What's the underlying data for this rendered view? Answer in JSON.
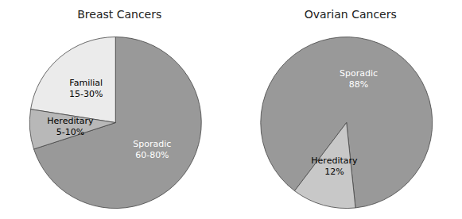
{
  "chart_data": [
    {
      "type": "pie",
      "title": "Breast Cancers",
      "categories": [
        "Sporadic\n60-80%",
        "Familial\n15-30%",
        "Hereditary\n5-10%"
      ],
      "values": [
        70,
        22.5,
        7.5
      ],
      "colors": [
        "#999999",
        "#ebebeb",
        "#b8b8b8"
      ]
    },
    {
      "type": "pie",
      "title": "Ovarian Cancers",
      "categories": [
        "Sporadic\n88%",
        "Hereditary\n12%"
      ],
      "values": [
        88,
        12
      ],
      "colors": [
        "#999999",
        "#c8c8c8"
      ]
    }
  ]
}
